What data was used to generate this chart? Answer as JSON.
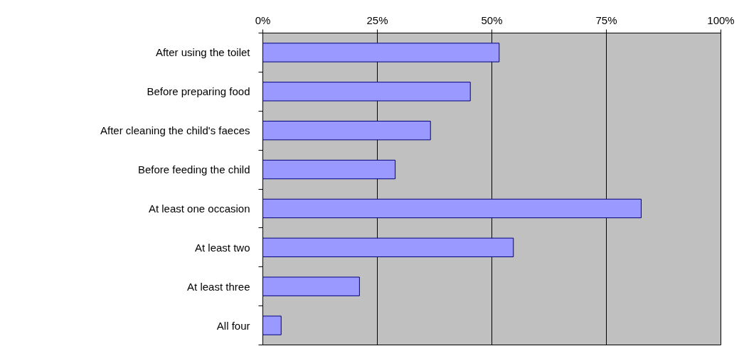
{
  "chart_data": {
    "type": "bar",
    "orientation": "horizontal",
    "categories": [
      "After using the toilet",
      "Before preparing food",
      "After cleaning the child's faeces",
      "Before feeding the child",
      "At least one occasion",
      "At least two",
      "At least three",
      "All four"
    ],
    "values": [
      51.6,
      45.3,
      36.6,
      28.9,
      82.6,
      54.7,
      21.1,
      4.0
    ],
    "color": "#9999ff",
    "xlim": [
      0,
      100
    ],
    "xticks": [
      {
        "value": 0,
        "label": "0%"
      },
      {
        "value": 25,
        "label": "25%"
      },
      {
        "value": 50,
        "label": "50%"
      },
      {
        "value": 75,
        "label": "75%"
      },
      {
        "value": 100,
        "label": "100%"
      }
    ],
    "grid": "x"
  }
}
